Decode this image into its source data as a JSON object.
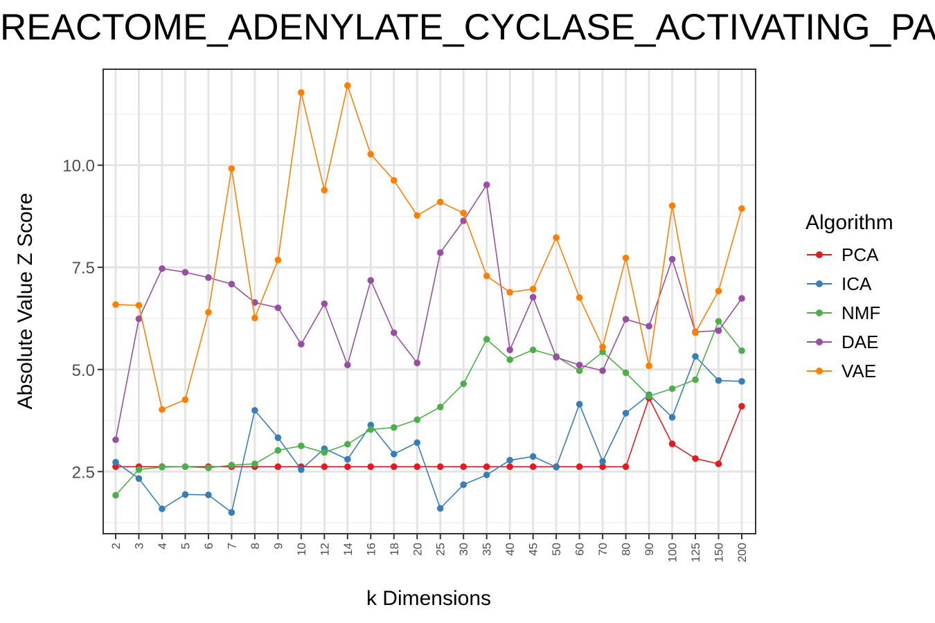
{
  "chart_data": {
    "type": "line",
    "title": "REACTOME_ADENYLATE_CYCLASE_ACTIVATING_PATHWAY",
    "xlabel": "k Dimensions",
    "ylabel": "Absolute Value Z Score",
    "categories": [
      "2",
      "3",
      "4",
      "5",
      "6",
      "7",
      "8",
      "9",
      "10",
      "12",
      "14",
      "16",
      "18",
      "20",
      "25",
      "30",
      "35",
      "40",
      "45",
      "50",
      "60",
      "70",
      "80",
      "90",
      "100",
      "125",
      "150",
      "200"
    ],
    "yticks": [
      "2.5",
      "5.0",
      "7.5",
      "10.0"
    ],
    "ylim": [
      0.98,
      12.35
    ],
    "grid": true,
    "legend": {
      "title": "Algorithm",
      "position": "right"
    },
    "series": [
      {
        "name": "PCA",
        "color": "#E41A1C",
        "values": [
          2.62,
          2.62,
          2.62,
          2.62,
          2.62,
          2.62,
          2.62,
          2.62,
          2.62,
          2.62,
          2.62,
          2.62,
          2.62,
          2.62,
          2.62,
          2.62,
          2.62,
          2.62,
          2.62,
          2.62,
          2.62,
          2.62,
          2.62,
          4.3,
          3.18,
          2.82,
          2.69,
          4.1
        ]
      },
      {
        "name": "ICA",
        "color": "#377EB8",
        "values": [
          2.73,
          2.33,
          1.59,
          1.94,
          1.93,
          1.5,
          4.0,
          3.33,
          2.55,
          3.06,
          2.8,
          3.64,
          2.93,
          3.21,
          1.6,
          2.18,
          2.42,
          2.78,
          2.87,
          2.61,
          4.15,
          2.75,
          3.93,
          4.38,
          3.83,
          5.32,
          4.73,
          4.71
        ]
      },
      {
        "name": "NMF",
        "color": "#4DAF4A",
        "values": [
          1.92,
          2.55,
          2.61,
          2.62,
          2.59,
          2.66,
          2.69,
          3.02,
          3.13,
          2.97,
          3.17,
          3.53,
          3.58,
          3.77,
          4.08,
          4.65,
          5.74,
          5.24,
          5.48,
          5.32,
          4.97,
          5.43,
          4.92,
          4.35,
          4.53,
          4.75,
          6.18,
          5.46
        ]
      },
      {
        "name": "DAE",
        "color": "#984EA3",
        "values": [
          3.28,
          6.24,
          7.47,
          7.38,
          7.25,
          7.09,
          6.64,
          6.51,
          5.62,
          6.61,
          5.11,
          7.18,
          5.9,
          5.16,
          7.86,
          8.64,
          9.52,
          5.48,
          6.77,
          5.3,
          5.11,
          4.97,
          6.23,
          6.06,
          7.7,
          5.92,
          5.95,
          6.74
        ]
      },
      {
        "name": "VAE",
        "color": "#FF7F00",
        "values": [
          6.59,
          6.57,
          4.02,
          4.26,
          6.4,
          9.92,
          6.26,
          7.68,
          11.78,
          9.39,
          11.95,
          10.27,
          9.63,
          8.77,
          9.1,
          8.83,
          7.29,
          6.89,
          6.97,
          8.23,
          6.76,
          5.55,
          7.73,
          5.09,
          9.01,
          5.9,
          6.92,
          8.94
        ]
      }
    ]
  }
}
